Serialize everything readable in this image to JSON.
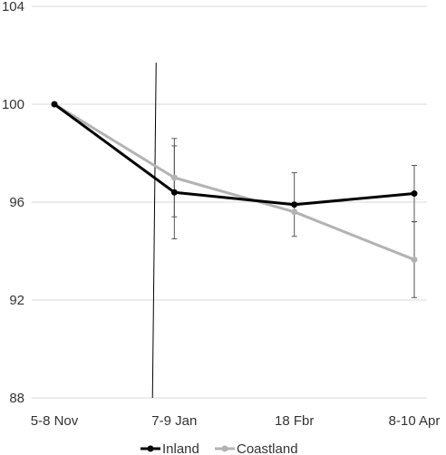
{
  "chart_data": {
    "type": "line",
    "categories": [
      "5-8 Nov",
      "7-9 Jan",
      "18 Fbr",
      "8-10 Apr"
    ],
    "ylim": [
      88,
      104
    ],
    "yticks": [
      88,
      92,
      96,
      100,
      104
    ],
    "grid": true,
    "legend": "bottom",
    "series": [
      {
        "name": "Inland",
        "color": "#000000",
        "values": [
          100,
          96.4,
          95.9,
          96.35
        ],
        "error_low": [
          100,
          94.5,
          94.6,
          95.2
        ],
        "error_high": [
          100,
          98.3,
          97.2,
          97.5
        ]
      },
      {
        "name": "Coastland",
        "color": "#b3b3b3",
        "values": [
          100,
          97.0,
          95.6,
          93.65
        ],
        "error_low": [
          100,
          95.4,
          95.6,
          92.1
        ],
        "error_high": [
          100,
          98.6,
          95.6,
          95.2
        ]
      }
    ],
    "annotation_line": {
      "between_categories": [
        0,
        1
      ],
      "position_fraction": 0.1,
      "from_value": 101.7,
      "to_value": 88
    }
  }
}
